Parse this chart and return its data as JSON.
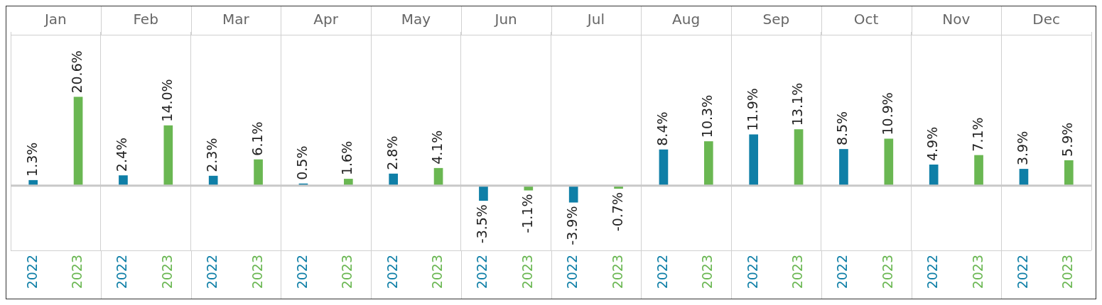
{
  "chart_data": {
    "type": "bar",
    "categories": [
      "Jan",
      "Feb",
      "Mar",
      "Apr",
      "May",
      "Jun",
      "Jul",
      "Aug",
      "Sep",
      "Oct",
      "Nov",
      "Dec"
    ],
    "series": [
      {
        "name": "2022",
        "color": "#0f7fa7",
        "values": [
          1.3,
          2.4,
          2.3,
          0.5,
          2.8,
          -3.5,
          -3.9,
          8.4,
          11.9,
          8.5,
          4.9,
          3.9
        ],
        "value_labels": [
          "1.3%",
          "2.4%",
          "2.3%",
          "0.5%",
          "2.8%",
          "-3.5%",
          "-3.9%",
          "8.4%",
          "11.9%",
          "8.5%",
          "4.9%",
          "3.9%"
        ]
      },
      {
        "name": "2023",
        "color": "#6ab752",
        "values": [
          20.6,
          14.0,
          6.1,
          1.6,
          4.1,
          -1.1,
          -0.7,
          10.3,
          13.1,
          10.9,
          7.1,
          5.9
        ],
        "value_labels": [
          "20.6%",
          "14.0%",
          "6.1%",
          "1.6%",
          "4.1%",
          "-1.1%",
          "-0.7%",
          "10.3%",
          "13.1%",
          "10.9%",
          "7.1%",
          "5.9%"
        ]
      }
    ],
    "grid": "x",
    "legend": false
  }
}
